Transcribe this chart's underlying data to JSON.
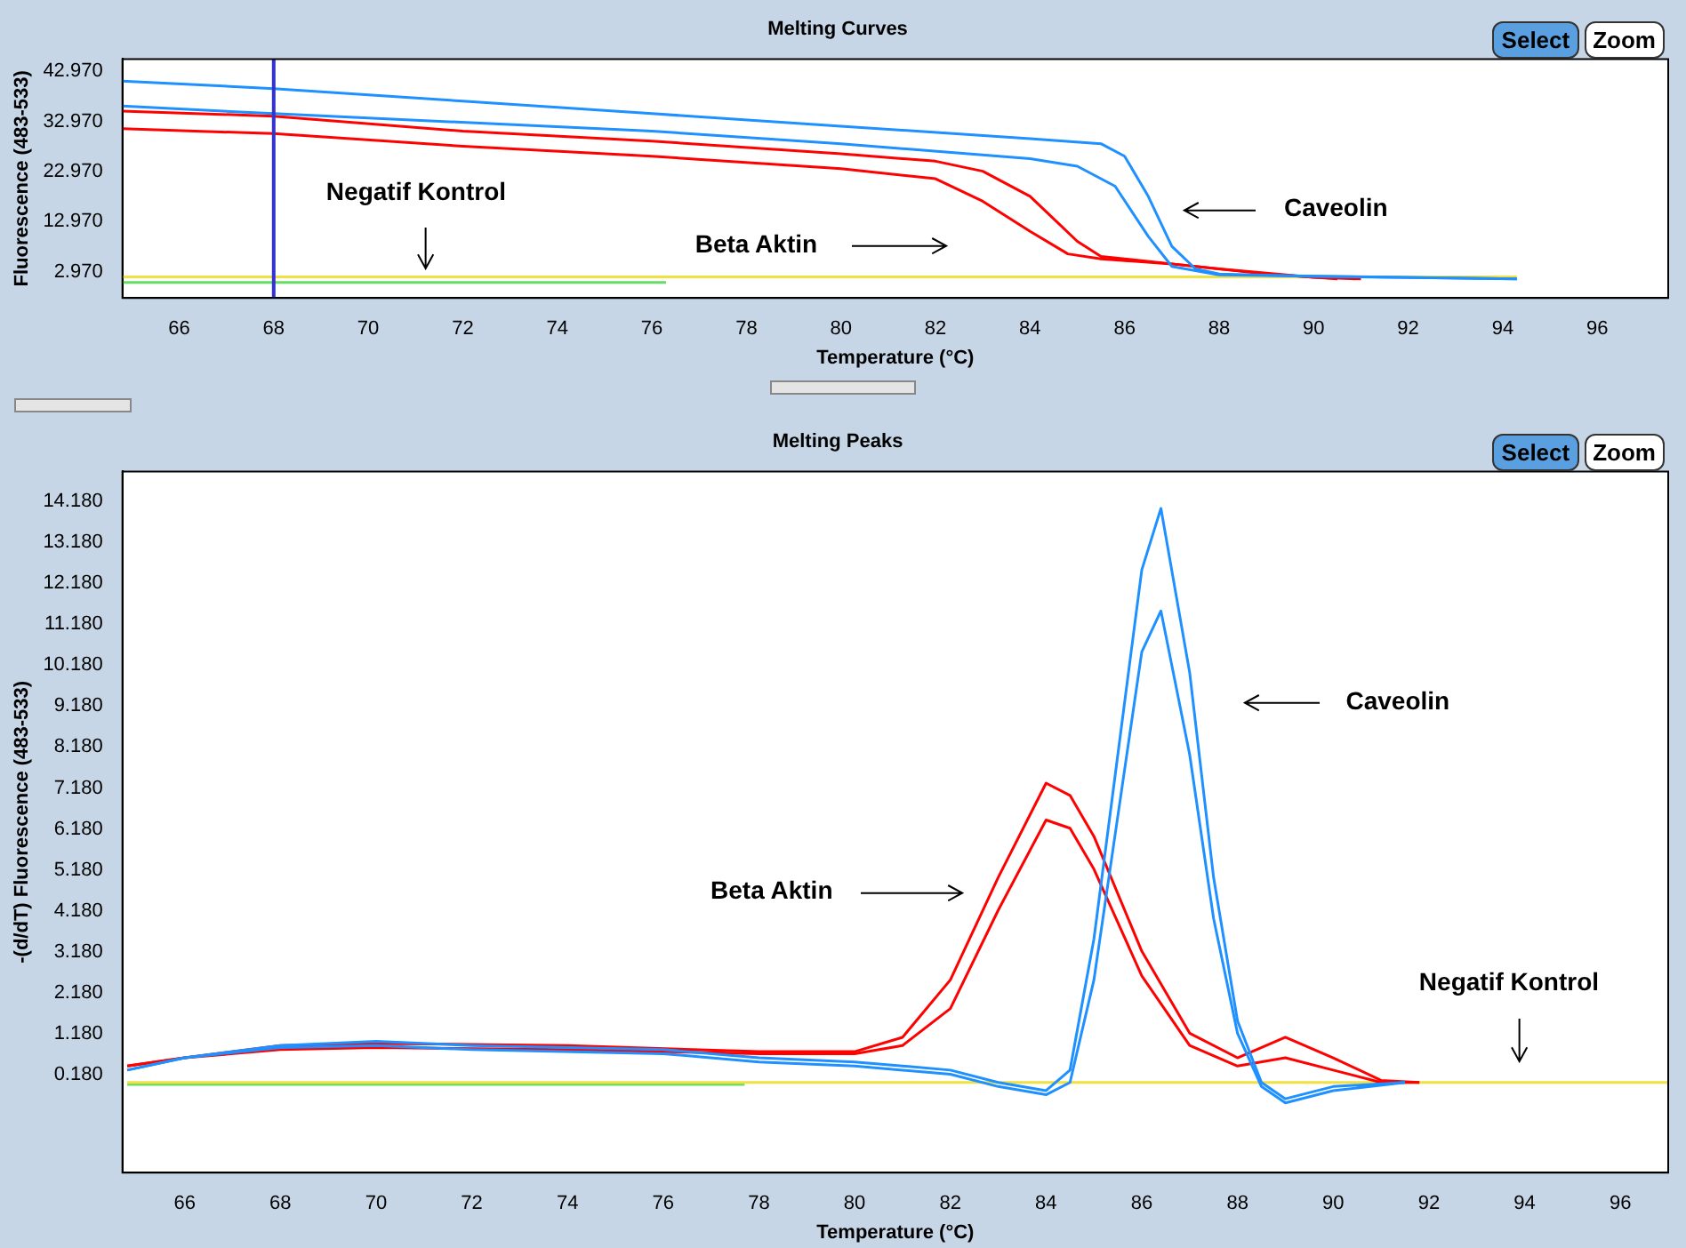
{
  "chart_data": [
    {
      "type": "line",
      "title": "Melting Curves",
      "xlabel": "Temperature (°C)",
      "ylabel": "Fluorescence (483-533)",
      "xlim": [
        64.8,
        97.5
      ],
      "xticks": [
        66,
        68,
        70,
        72,
        74,
        76,
        78,
        80,
        82,
        84,
        86,
        88,
        90,
        92,
        94,
        96
      ],
      "ylim": [
        -2.3,
        45.4
      ],
      "yticks": [
        {
          "value": 2.97,
          "label": "2.970"
        },
        {
          "value": 12.97,
          "label": "12.970"
        },
        {
          "value": 22.97,
          "label": "22.970"
        },
        {
          "value": 32.97,
          "label": "32.970"
        },
        {
          "value": 42.97,
          "label": "42.970"
        }
      ],
      "grid": false,
      "legend": false,
      "marker": "none",
      "line_style": "solid",
      "series": [
        {
          "color": "#1e90ff",
          "x": [
            64.8,
            68,
            72,
            76,
            80,
            84,
            85.5,
            86,
            86.5,
            87,
            87.5,
            88,
            90,
            94.3
          ],
          "values": [
            41,
            39.5,
            37,
            34.5,
            32,
            29.5,
            28.5,
            26,
            18,
            8,
            3.5,
            2.5,
            2,
            1.5
          ]
        },
        {
          "color": "#1e90ff",
          "x": [
            64.8,
            68,
            76,
            80,
            84,
            85,
            85.8,
            86.5,
            87,
            88,
            94.3
          ],
          "values": [
            36,
            34.5,
            31,
            28.5,
            25.5,
            24,
            20,
            10,
            4,
            2.3,
            1.5
          ]
        },
        {
          "color": "#ff0000",
          "x": [
            64.8,
            68,
            72,
            76,
            80,
            82,
            83,
            84,
            85,
            85.5,
            86,
            87,
            88,
            90,
            91
          ],
          "values": [
            35,
            34,
            31,
            29,
            26.5,
            25,
            23,
            18,
            9,
            6,
            5.5,
            4.5,
            3.5,
            1.8,
            1.5
          ]
        },
        {
          "color": "#ff0000",
          "x": [
            64.8,
            68,
            72,
            76,
            80,
            82,
            83,
            84,
            84.8,
            85.5,
            87,
            89,
            90.5
          ],
          "values": [
            31.5,
            30.5,
            28,
            26,
            23.5,
            21.5,
            17,
            11,
            6.5,
            5.5,
            4.5,
            2.5,
            1.5
          ]
        },
        {
          "color": "#f0e040",
          "x": [
            64.8,
            68,
            72,
            76,
            80,
            84,
            88,
            92,
            94.3
          ],
          "values": [
            1.9,
            1.9,
            1.9,
            1.9,
            1.9,
            1.9,
            1.9,
            1.9,
            1.9
          ]
        },
        {
          "color": "#66dd66",
          "x": [
            64.8,
            68,
            72,
            76.3
          ],
          "values": [
            0.8,
            0.8,
            0.8,
            0.8
          ]
        }
      ],
      "ref_lines": [
        {
          "axis": "x",
          "value": 68,
          "color": "#3333cc"
        }
      ],
      "annotations": [
        "Negatif Kontrol",
        "Beta Aktin",
        "Caveolin",
        "Select",
        "Zoom"
      ]
    },
    {
      "type": "line",
      "title": "Melting Peaks",
      "xlabel": "Temperature (°C)",
      "ylabel": "-(d/dT) Fluorescence (483-533)",
      "xlim": [
        64.7,
        97
      ],
      "xticks": [
        66,
        68,
        70,
        72,
        74,
        76,
        78,
        80,
        82,
        84,
        86,
        88,
        90,
        92,
        94,
        96
      ],
      "ylim": [
        -2.2,
        14.9
      ],
      "yticks": [
        {
          "value": 0.18,
          "label": "0.180"
        },
        {
          "value": 1.18,
          "label": "1.180"
        },
        {
          "value": 2.18,
          "label": "2.180"
        },
        {
          "value": 3.18,
          "label": "3.180"
        },
        {
          "value": 4.18,
          "label": "4.180"
        },
        {
          "value": 5.18,
          "label": "5.180"
        },
        {
          "value": 6.18,
          "label": "6.180"
        },
        {
          "value": 7.18,
          "label": "7.180"
        },
        {
          "value": 8.18,
          "label": "8.180"
        },
        {
          "value": 9.18,
          "label": "9.180"
        },
        {
          "value": 10.18,
          "label": "10.180"
        },
        {
          "value": 11.18,
          "label": "11.180"
        },
        {
          "value": 12.18,
          "label": "12.180"
        },
        {
          "value": 13.18,
          "label": "13.180"
        },
        {
          "value": 14.18,
          "label": "14.180"
        }
      ],
      "grid": false,
      "legend": false,
      "marker": "none",
      "line_style": "solid",
      "series": [
        {
          "color": "#1e90ff",
          "x": [
            64.8,
            66,
            68,
            70,
            72,
            76,
            78,
            80,
            82,
            83,
            84,
            84.5,
            85,
            85.5,
            86,
            86.4,
            87,
            87.5,
            88,
            88.5,
            89,
            90,
            91.5
          ],
          "values": [
            0.3,
            0.6,
            0.9,
            1,
            0.9,
            0.8,
            0.6,
            0.5,
            0.3,
            0,
            -0.2,
            0.3,
            3.5,
            8,
            12.5,
            14,
            10,
            5,
            1.5,
            0,
            -0.4,
            -0.1,
            0
          ]
        },
        {
          "color": "#1e90ff",
          "x": [
            64.8,
            66,
            68,
            70,
            72,
            76,
            78,
            80,
            82,
            83,
            84,
            84.5,
            85,
            85.5,
            86,
            86.4,
            87,
            87.5,
            88,
            88.5,
            89,
            90,
            91.5
          ],
          "values": [
            0.3,
            0.6,
            0.85,
            0.9,
            0.8,
            0.7,
            0.5,
            0.4,
            0.2,
            -0.1,
            -0.3,
            0,
            2.5,
            6.5,
            10.5,
            11.5,
            8,
            4,
            1.2,
            -0.1,
            -0.5,
            -0.2,
            0
          ]
        },
        {
          "color": "#ff0000",
          "x": [
            64.8,
            66,
            68,
            70,
            74,
            78,
            80,
            81,
            82,
            83,
            84,
            84.5,
            85,
            86,
            87,
            88,
            89,
            90,
            91,
            91.8
          ],
          "values": [
            0.4,
            0.6,
            0.9,
            0.95,
            0.9,
            0.75,
            0.75,
            1.1,
            2.5,
            5,
            7.3,
            7,
            6,
            3.2,
            1.2,
            0.6,
            1.1,
            0.6,
            0.05,
            0
          ]
        },
        {
          "color": "#ff0000",
          "x": [
            64.8,
            66,
            68,
            70,
            74,
            78,
            80,
            81,
            82,
            83,
            84,
            84.5,
            85,
            86,
            87,
            88,
            89,
            90,
            91,
            91.8
          ],
          "values": [
            0.4,
            0.6,
            0.8,
            0.85,
            0.8,
            0.7,
            0.7,
            0.9,
            1.8,
            4.2,
            6.4,
            6.2,
            5.2,
            2.6,
            0.9,
            0.4,
            0.6,
            0.3,
            0,
            0
          ]
        },
        {
          "color": "#f0e040",
          "x": [
            64.8,
            70,
            76,
            82,
            88,
            92,
            94,
            97
          ],
          "values": [
            0,
            0,
            0,
            0,
            0,
            0,
            0,
            0
          ]
        },
        {
          "color": "#66dd66",
          "x": [
            64.8,
            70,
            74,
            77.7
          ],
          "values": [
            -0.05,
            -0.05,
            -0.05,
            -0.05
          ]
        }
      ],
      "annotations": [
        "Caveolin",
        "Beta Aktin",
        "Negatif Kontrol",
        "Select",
        "Zoom"
      ]
    }
  ]
}
